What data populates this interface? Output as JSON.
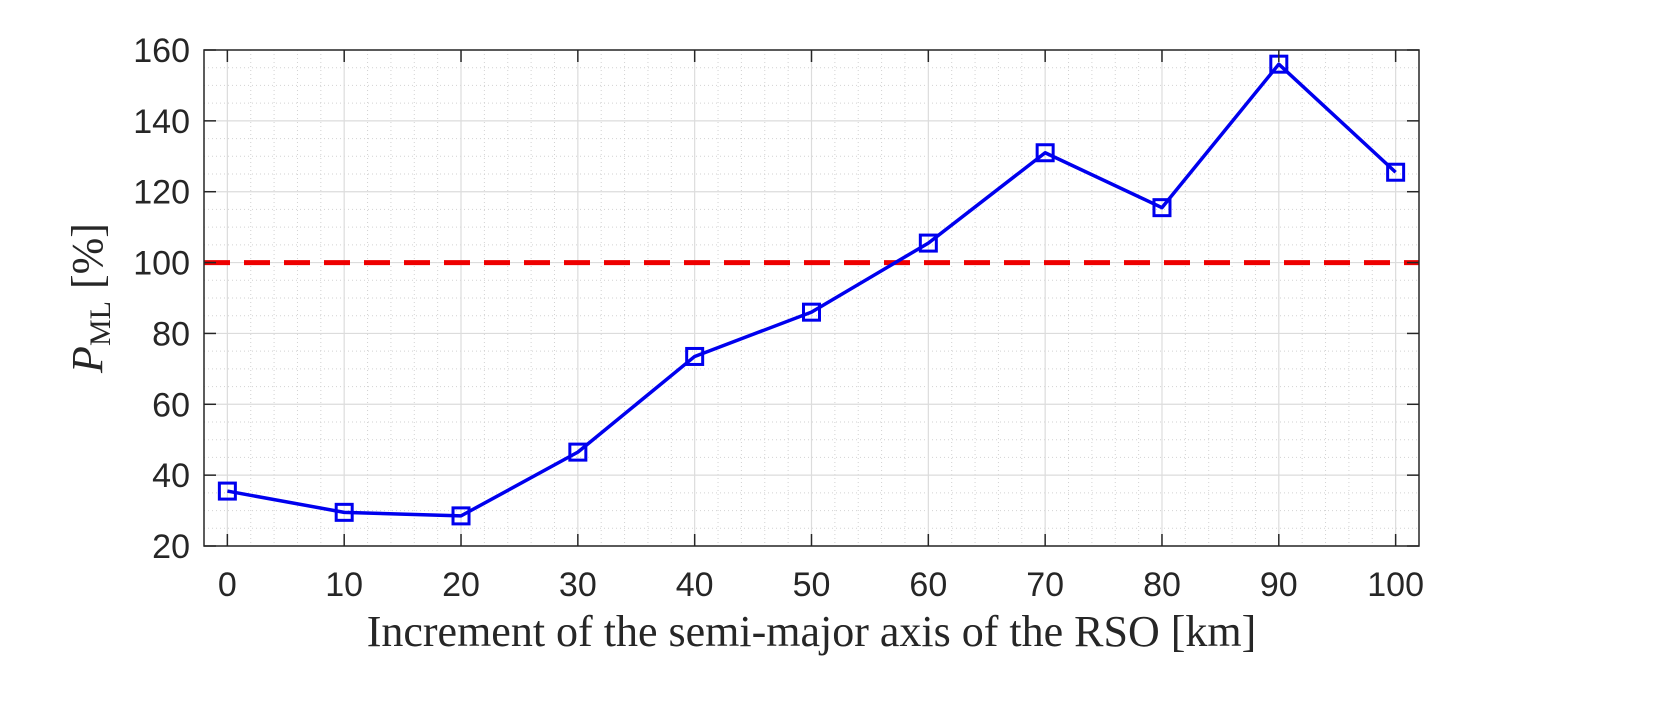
{
  "chart_data": {
    "type": "line",
    "title": "",
    "xlabel": "Increment of the semi-major axis of the RSO [km]",
    "ylabel": {
      "symbol": "P",
      "subscript": "ML",
      "unit": "[%]"
    },
    "x": [
      0,
      10,
      20,
      30,
      40,
      50,
      60,
      70,
      80,
      90,
      100
    ],
    "xlim": [
      -2,
      102
    ],
    "ylim": [
      20,
      160
    ],
    "xticks": [
      0,
      10,
      20,
      30,
      40,
      50,
      60,
      70,
      80,
      90,
      100
    ],
    "yticks": [
      20,
      40,
      60,
      80,
      100,
      120,
      140,
      160
    ],
    "grid": true,
    "minor_grid": true,
    "series": [
      {
        "values": [
          35.5,
          29.5,
          28.5,
          46.5,
          73.5,
          86,
          105.5,
          131,
          115.5,
          156,
          125.5
        ],
        "color": "#0000ee",
        "marker": "square",
        "line": "solid"
      }
    ],
    "reference_lines": [
      {
        "y": 100,
        "color": "#ee0000",
        "line": "dashed"
      }
    ]
  }
}
